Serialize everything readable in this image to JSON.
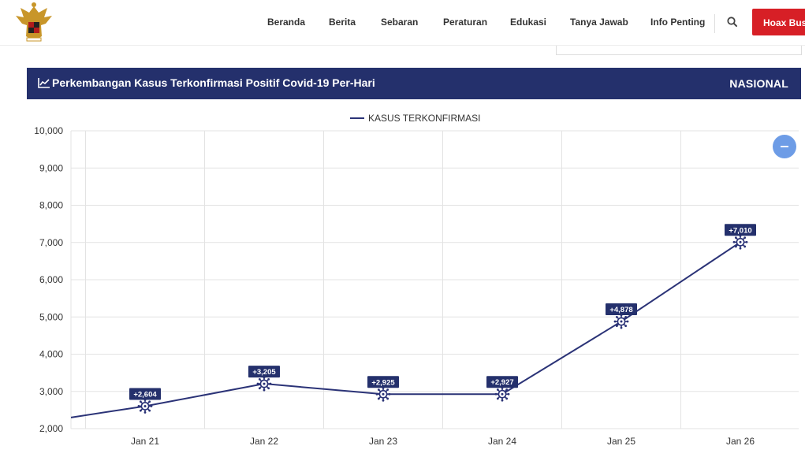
{
  "nav": {
    "items": [
      "Beranda",
      "Berita",
      "Sebaran",
      "Peraturan",
      "Edukasi",
      "Tanya Jawab",
      "Info Penting"
    ],
    "hoax_button": "Hoax Buster",
    "logo_icon": "garuda-emblem-icon",
    "search_icon": "search-icon"
  },
  "header": {
    "title": "Perkembangan Kasus Terkonfirmasi Positif Covid-19 Per-Hari",
    "scope": "NASIONAL",
    "icon": "line-chart-icon"
  },
  "colors": {
    "header_bg": "#24306c",
    "series": "#2b3377",
    "hoax_button": "#d71f26",
    "zoom_button": "#6d9ce6"
  },
  "chart_data": {
    "type": "line",
    "title": "",
    "xlabel": "",
    "ylabel": "",
    "legend": "KASUS TERKONFIRMASI",
    "legend_position": "top-center",
    "categories": [
      "Jan 21",
      "Jan 22",
      "Jan 23",
      "Jan 24",
      "Jan 25",
      "Jan 26"
    ],
    "values": [
      2604,
      3205,
      2925,
      2927,
      4878,
      7010
    ],
    "data_labels": [
      "+2,604",
      "+3,205",
      "+2,925",
      "+2,927",
      "+4,878",
      "+7,010"
    ],
    "line_start_value": 2300,
    "ylim": [
      2000,
      10000
    ],
    "yticks": [
      "2,000",
      "3,000",
      "4,000",
      "5,000",
      "6,000",
      "7,000",
      "8,000",
      "9,000",
      "10,000"
    ],
    "grid": true,
    "marker_icon": "virus-icon"
  }
}
